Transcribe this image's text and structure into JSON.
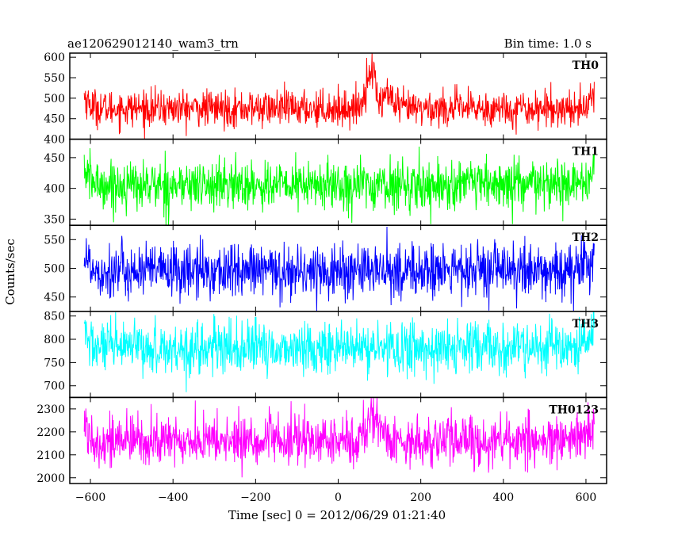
{
  "header": {
    "title": "ae120629012140_wam3_trn",
    "bin_time": "Bin time: 1.0 s"
  },
  "chart_data": {
    "type": "line",
    "xlabel": "Time [sec] 0 = 2012/06/29 01:21:40",
    "ylabel": "Counts/sec",
    "xlim": [
      -650,
      650
    ],
    "xticks": [
      -600,
      -400,
      -200,
      0,
      200,
      400,
      600
    ],
    "x_range": [
      -615,
      620
    ],
    "bin_time_s": 1.0,
    "panels": [
      {
        "name": "TH0",
        "color": "#ff0000",
        "ylim": [
          400,
          610
        ],
        "yticks": [
          400,
          450,
          500,
          550,
          600
        ],
        "baseline": 475,
        "noise": 22,
        "features": [
          {
            "type": "peak",
            "center": 80,
            "width": 12,
            "amplitude": 95
          },
          {
            "type": "peak",
            "center": 118,
            "width": 10,
            "amplitude": 40
          },
          {
            "type": "dip",
            "center": 100,
            "width": 6,
            "amplitude": -20
          }
        ]
      },
      {
        "name": "TH1",
        "color": "#00ff00",
        "ylim": [
          340,
          480
        ],
        "yticks": [
          350,
          400,
          450
        ],
        "baseline": 405,
        "noise": 20,
        "features": []
      },
      {
        "name": "TH2",
        "color": "#0000ff",
        "ylim": [
          425,
          575
        ],
        "yticks": [
          450,
          500,
          550
        ],
        "baseline": 495,
        "noise": 24,
        "features": []
      },
      {
        "name": "TH3",
        "color": "#00ffff",
        "ylim": [
          675,
          860
        ],
        "yticks": [
          700,
          750,
          800,
          850
        ],
        "baseline": 780,
        "noise": 28,
        "features": []
      },
      {
        "name": "TH0123",
        "color": "#ff00ff",
        "ylim": [
          1975,
          2350
        ],
        "yticks": [
          2000,
          2100,
          2200,
          2300
        ],
        "baseline": 2160,
        "noise": 55,
        "features": [
          {
            "type": "peak",
            "center": 85,
            "width": 14,
            "amplitude": 120
          }
        ]
      }
    ]
  }
}
